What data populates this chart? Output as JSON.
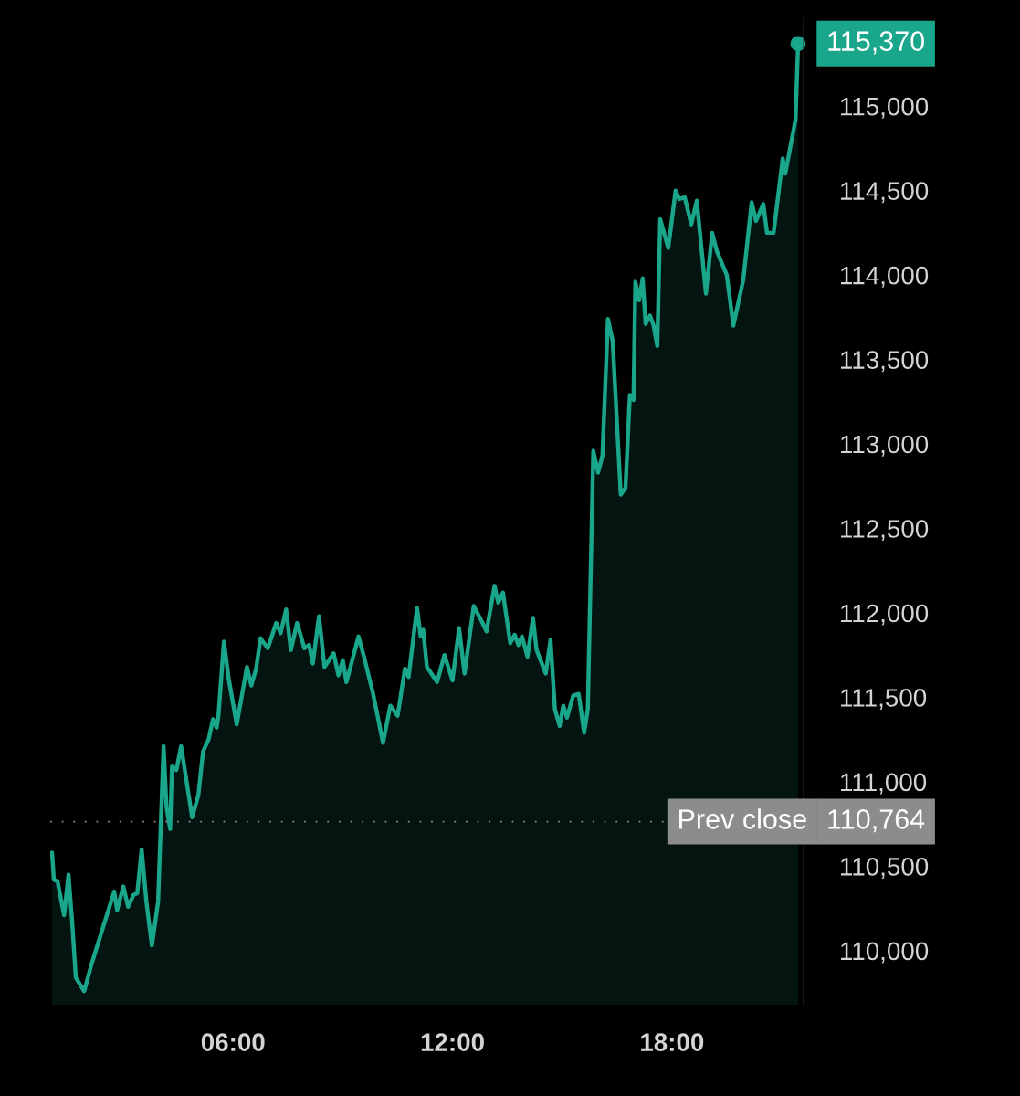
{
  "chart_data": {
    "type": "area",
    "series": [
      {
        "color": "#1aa68a",
        "x": [
          1.05,
          1.1,
          1.2,
          1.38,
          1.5,
          1.6,
          1.7,
          1.93,
          2.13,
          2.75,
          2.83,
          3.0,
          3.13,
          3.28,
          3.38,
          3.5,
          3.63,
          3.78,
          3.95,
          4.1,
          4.18,
          4.28,
          4.33,
          4.45,
          4.58,
          4.88,
          5.05,
          5.18,
          5.33,
          5.45,
          5.55,
          5.6,
          5.75,
          5.88,
          6.1,
          6.38,
          6.5,
          6.63,
          6.75,
          6.95,
          7.18,
          7.3,
          7.45,
          7.58,
          7.75,
          7.95,
          8.08,
          8.18,
          8.35,
          8.5,
          8.75,
          8.88,
          9.0,
          9.1,
          9.43,
          9.58,
          9.83,
          10.1,
          10.3,
          10.5,
          10.7,
          10.8,
          11.03,
          11.13,
          11.2,
          11.3,
          11.58,
          11.78,
          12.0,
          12.18,
          12.33,
          12.58,
          12.8,
          12.93,
          13.15,
          13.25,
          13.38,
          13.58,
          13.7,
          13.8,
          13.9,
          14.05,
          14.2,
          14.3,
          14.55,
          14.68,
          14.8,
          14.93,
          15.03,
          15.13,
          15.3,
          15.45,
          15.6,
          15.7,
          15.85,
          15.98,
          16.1,
          16.25,
          16.38,
          16.6,
          16.73,
          16.85,
          16.95,
          17.0,
          17.1,
          17.2,
          17.28,
          17.4,
          17.5,
          17.6,
          17.68,
          17.9,
          18.1,
          18.2,
          18.35,
          18.53,
          18.68,
          18.93,
          19.1,
          19.23,
          19.5,
          19.68,
          19.95,
          20.18,
          20.3,
          20.5,
          20.6,
          20.78,
          21.03,
          21.1,
          21.38,
          21.45
        ],
        "values": [
          110580,
          110420,
          110410,
          110210,
          110450,
          110170,
          109840,
          109760,
          109920,
          110350,
          110240,
          110380,
          110260,
          110330,
          110340,
          110600,
          110290,
          110030,
          110290,
          111210,
          110850,
          110720,
          111090,
          111070,
          111210,
          110790,
          110920,
          111180,
          111250,
          111370,
          111320,
          111390,
          111830,
          111610,
          111340,
          111680,
          111570,
          111670,
          111850,
          111790,
          111940,
          111880,
          112020,
          111780,
          111940,
          111790,
          111810,
          111700,
          111980,
          111680,
          111760,
          111630,
          111720,
          111590,
          111860,
          111740,
          111520,
          111230,
          111450,
          111390,
          111670,
          111620,
          112030,
          111860,
          111900,
          111680,
          111590,
          111750,
          111600,
          111910,
          111640,
          112040,
          111950,
          111890,
          112160,
          112060,
          112120,
          111820,
          111870,
          111810,
          111860,
          111740,
          111970,
          111780,
          111640,
          111840,
          111430,
          111330,
          111450,
          111380,
          111510,
          111520,
          111290,
          111430,
          112960,
          112830,
          112930,
          113740,
          113610,
          112700,
          112740,
          113290,
          113260,
          113960,
          113850,
          113980,
          113710,
          113760,
          113700,
          113580,
          114330,
          114160,
          114500,
          114450,
          114460,
          114300,
          114440,
          113890,
          114250,
          114140,
          114000,
          113700,
          113970,
          114430,
          114320,
          114420,
          114250,
          114250,
          114690,
          114600,
          114920,
          115370
        ]
      }
    ],
    "xlim": [
      1.0,
      21.6
    ],
    "xticks": [
      {
        "value": 6,
        "label": "06:00"
      },
      {
        "value": 12,
        "label": "12:00"
      },
      {
        "value": 18,
        "label": "18:00"
      }
    ],
    "ylim": [
      109680,
      115520
    ],
    "yticks": [
      {
        "value": 110000,
        "label": "110,000"
      },
      {
        "value": 110500,
        "label": "110,500"
      },
      {
        "value": 111000,
        "label": "111,000"
      },
      {
        "value": 111500,
        "label": "111,500"
      },
      {
        "value": 112000,
        "label": "112,000"
      },
      {
        "value": 112500,
        "label": "112,500"
      },
      {
        "value": 113000,
        "label": "113,000"
      },
      {
        "value": 113500,
        "label": "113,500"
      },
      {
        "value": 114000,
        "label": "114,000"
      },
      {
        "value": 114500,
        "label": "114,500"
      },
      {
        "value": 115000,
        "label": "115,000"
      }
    ],
    "ref_lines": [
      {
        "axis": "y",
        "value": 110764,
        "label": "Prev close",
        "color": "#8c8c8c",
        "line_style": "dotted"
      }
    ],
    "annotations": [
      {
        "text": "115,370",
        "x": 21.45,
        "y": 115370
      },
      "110,764"
    ],
    "grid": false,
    "legend": false
  }
}
